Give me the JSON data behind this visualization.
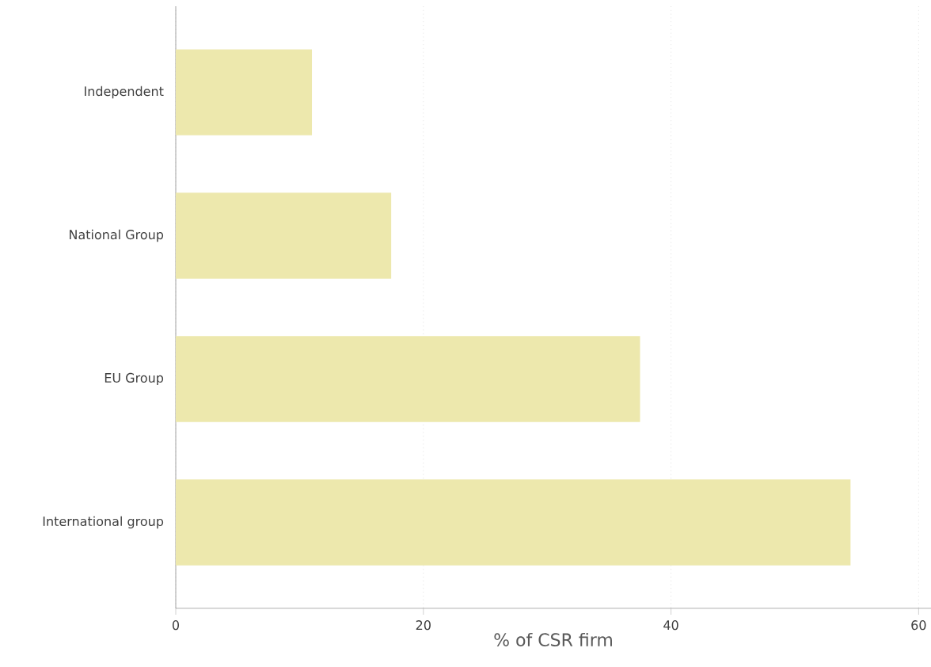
{
  "chart_data": {
    "type": "bar",
    "orientation": "horizontal",
    "categories": [
      "Independent",
      "National Group",
      "EU Group",
      "International group"
    ],
    "values": [
      11,
      17.4,
      37.5,
      54.5
    ],
    "color": "#ede8ad",
    "xlabel": "% of CSR firm",
    "xlim": [
      0,
      61
    ],
    "xticks": [
      0,
      20,
      40,
      60
    ],
    "grid": "x"
  }
}
